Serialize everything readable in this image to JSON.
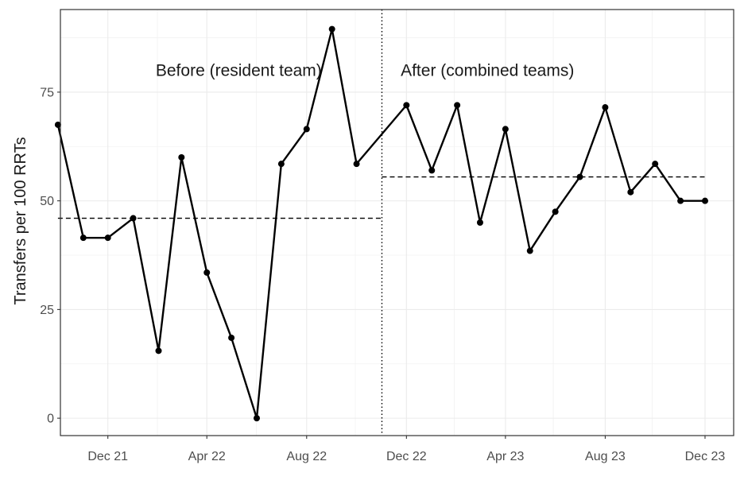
{
  "chart_data": {
    "type": "line",
    "title": "",
    "xlabel": "",
    "ylabel": "Transfers per 100 RRTs",
    "ylim": [
      -4,
      94
    ],
    "xlim": [
      "2021-10-04",
      "2024-01-05"
    ],
    "grid": true,
    "legend": "none",
    "x_ticks": [
      {
        "date": "2021-12-01",
        "label": "Dec 21"
      },
      {
        "date": "2022-04-01",
        "label": "Apr 22"
      },
      {
        "date": "2022-08-01",
        "label": "Aug 22"
      },
      {
        "date": "2022-12-01",
        "label": "Dec 22"
      },
      {
        "date": "2023-04-01",
        "label": "Apr 23"
      },
      {
        "date": "2023-08-01",
        "label": "Aug 23"
      },
      {
        "date": "2023-12-01",
        "label": "Dec 23"
      }
    ],
    "y_ticks": [
      0,
      25,
      50,
      75
    ],
    "series": [
      {
        "x": [
          "2021-10-01",
          "2021-11-01",
          "2021-12-01",
          "2022-01-01",
          "2022-02-01",
          "2022-03-01",
          "2022-04-01",
          "2022-05-01",
          "2022-06-01",
          "2022-07-01",
          "2022-08-01",
          "2022-09-01",
          "2022-10-01",
          "2022-12-01",
          "2023-01-01",
          "2023-02-01",
          "2023-03-01",
          "2023-04-01",
          "2023-05-01",
          "2023-06-01",
          "2023-07-01",
          "2023-08-01",
          "2023-09-01",
          "2023-10-01",
          "2023-11-01",
          "2023-12-01"
        ],
        "y": [
          67.5,
          41.5,
          41.5,
          46,
          15.5,
          60,
          33.5,
          18.5,
          0,
          58.5,
          66.5,
          89.5,
          58.5,
          72,
          57,
          72,
          45,
          66.5,
          38.5,
          47.5,
          55.5,
          71.5,
          52,
          58.5,
          50,
          50
        ]
      }
    ],
    "reference_lines": [
      {
        "type": "horizontal",
        "style": "dashed",
        "y": 46,
        "x_from": "2021-10-01",
        "x_to": "2022-11-01"
      },
      {
        "type": "horizontal",
        "style": "dashed",
        "y": 55.5,
        "x_from": "2022-11-01",
        "x_to": "2023-12-01"
      },
      {
        "type": "vertical",
        "style": "dotted",
        "x": "2022-11-01"
      }
    ],
    "annotations": [
      {
        "text": "Before (resident team)",
        "x": "2022-05-10",
        "y": 80
      },
      {
        "text": "After (combined teams)",
        "x": "2023-03-10",
        "y": 80
      }
    ]
  }
}
